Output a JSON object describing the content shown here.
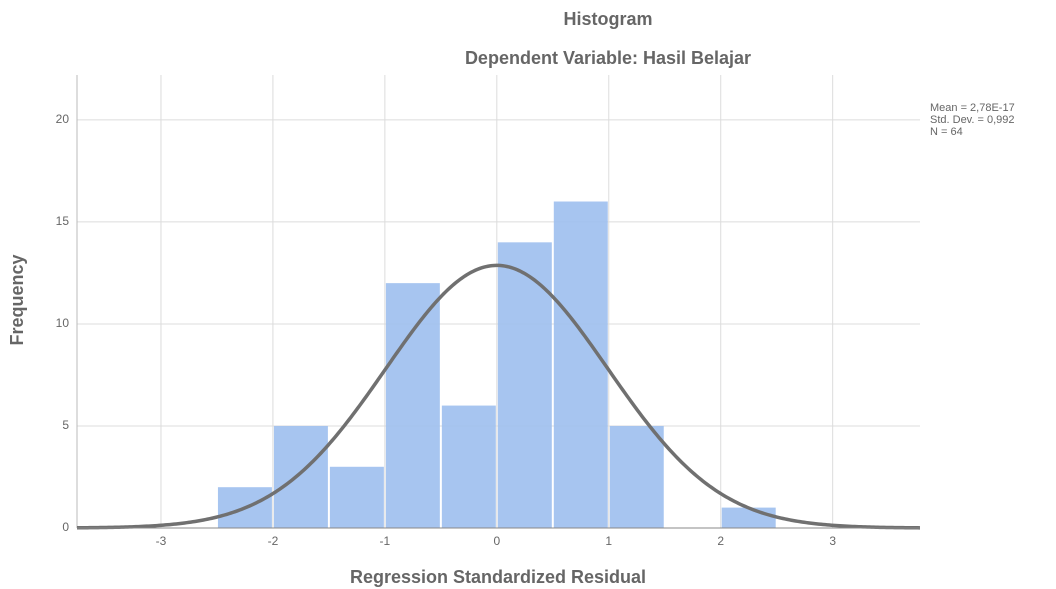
{
  "chart_data": {
    "type": "histogram",
    "title": "Histogram",
    "subtitle": "Dependent Variable: Hasil Belajar",
    "x_label": "Regression Standardized Residual",
    "y_label": "Frequency",
    "bins": [
      -2.5,
      -2,
      -1.5,
      -1,
      -0.5,
      0,
      0.5,
      1,
      1.5,
      2,
      2.5
    ],
    "values": [
      2,
      5,
      3,
      12,
      6,
      14,
      16,
      5,
      0,
      1
    ],
    "color": "#9dbfee",
    "curve_color": "#707070",
    "stats": [
      {
        "value": 2.78e-17,
        "label": "Mean = 2,78E-17"
      },
      {
        "value": 0.992,
        "label": "Std. Dev. = 0,992"
      },
      {
        "value": 64,
        "label": "N = 64"
      }
    ],
    "xlim": [
      -3.75,
      3.78
    ],
    "ylim": [
      0,
      22.2
    ],
    "xticks": [
      -3,
      -2,
      -1,
      0,
      1,
      2,
      3
    ],
    "yticks": [
      0,
      5,
      10,
      15,
      20
    ],
    "grid": true
  }
}
